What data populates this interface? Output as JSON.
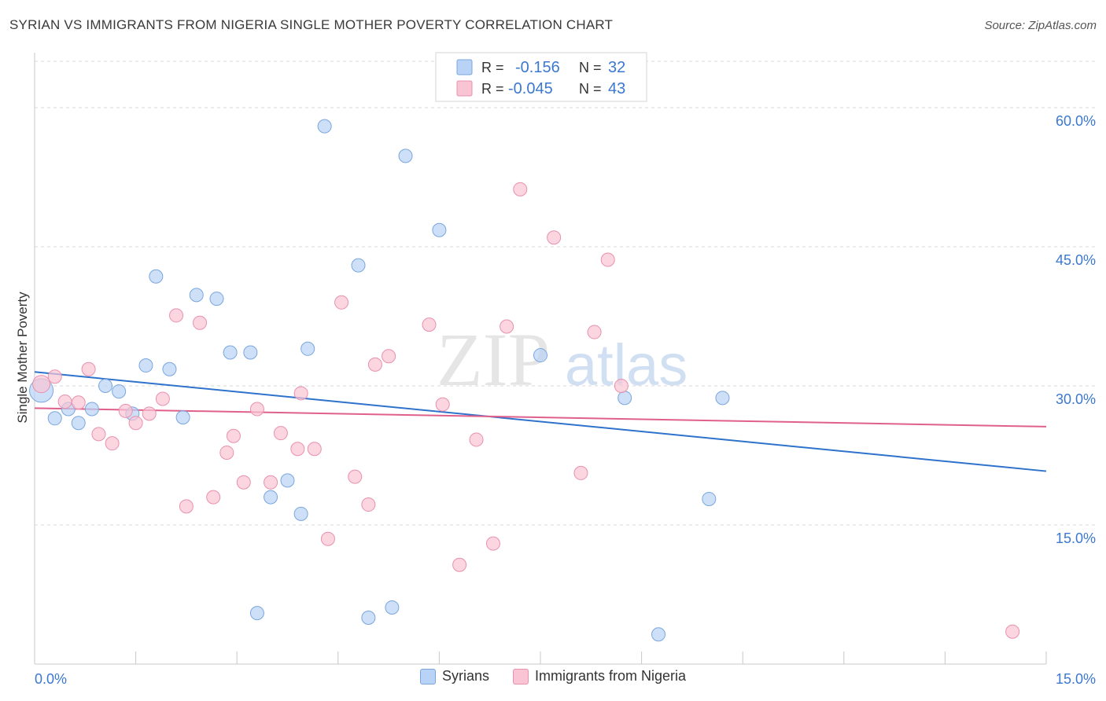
{
  "header": {
    "title": "SYRIAN VS IMMIGRANTS FROM NIGERIA SINGLE MOTHER POVERTY CORRELATION CHART",
    "source": "Source: ZipAtlas.com"
  },
  "watermark": {
    "zip": "ZIP",
    "atlas": "atlas"
  },
  "legend_top": {
    "rows": [
      {
        "r_label": "R =",
        "r_value": "-0.156",
        "n_label": "N =",
        "n_value": "32"
      },
      {
        "r_label": "R =",
        "r_value": "-0.045",
        "n_label": "N =",
        "n_value": "43"
      }
    ]
  },
  "colors": {
    "syrians_fill": "#b8d3f5",
    "syrians_stroke": "#7aa6de",
    "syrians_line": "#2e72cc",
    "nigeria_fill": "#f9c4d4",
    "nigeria_stroke": "#e990ad",
    "nigeria_line": "#e0608c",
    "axis_text": "#3b78d0",
    "grid": "#d9d9d9"
  },
  "chart_data": {
    "type": "scatter",
    "title": "SYRIAN VS IMMIGRANTS FROM NIGERIA SINGLE MOTHER POVERTY CORRELATION CHART",
    "xlabel": "",
    "ylabel": "Single Mother Poverty",
    "xlim": [
      0,
      15
    ],
    "ylim": [
      0,
      65
    ],
    "x_tick_labels": [
      "0.0%",
      "15.0%"
    ],
    "y_ticks": [
      15,
      30,
      45,
      60
    ],
    "y_tick_labels": [
      "15.0%",
      "30.0%",
      "45.0%",
      "60.0%"
    ],
    "grid": true,
    "legend_position": "bottom-center",
    "series": [
      {
        "name": "Syrians",
        "color": "#b8d3f5",
        "points": [
          [
            0.1,
            29.5
          ],
          [
            0.3,
            26.5
          ],
          [
            0.5,
            27.5
          ],
          [
            0.65,
            26
          ],
          [
            0.85,
            27.5
          ],
          [
            1.05,
            30.0
          ],
          [
            1.25,
            29.4
          ],
          [
            1.45,
            27.0
          ],
          [
            1.65,
            32.2
          ],
          [
            1.8,
            41.8
          ],
          [
            2.0,
            31.8
          ],
          [
            2.2,
            26.6
          ],
          [
            2.4,
            39.8
          ],
          [
            2.7,
            39.4
          ],
          [
            2.9,
            33.6
          ],
          [
            3.2,
            33.6
          ],
          [
            3.3,
            5.5
          ],
          [
            3.5,
            18.0
          ],
          [
            3.75,
            19.8
          ],
          [
            3.95,
            16.2
          ],
          [
            4.05,
            34.0
          ],
          [
            4.3,
            58.0
          ],
          [
            4.8,
            43.0
          ],
          [
            4.95,
            5.0
          ],
          [
            5.3,
            6.1
          ],
          [
            5.5,
            54.8
          ],
          [
            6.0,
            46.8
          ],
          [
            7.5,
            33.3
          ],
          [
            8.75,
            28.7
          ],
          [
            9.25,
            3.2
          ],
          [
            10.0,
            17.8
          ],
          [
            10.2,
            28.7
          ]
        ],
        "trend": {
          "x": [
            0,
            15
          ],
          "y": [
            31.5,
            20.8
          ]
        }
      },
      {
        "name": "Immigrants from Nigeria",
        "color": "#f9c4d4",
        "points": [
          [
            0.1,
            30.2
          ],
          [
            0.3,
            31.0
          ],
          [
            0.45,
            28.3
          ],
          [
            0.65,
            28.2
          ],
          [
            0.8,
            31.8
          ],
          [
            0.95,
            24.8
          ],
          [
            1.15,
            23.8
          ],
          [
            1.35,
            27.3
          ],
          [
            1.5,
            26.0
          ],
          [
            1.7,
            27.0
          ],
          [
            1.9,
            28.6
          ],
          [
            2.25,
            17.0
          ],
          [
            2.1,
            37.6
          ],
          [
            2.45,
            36.8
          ],
          [
            2.65,
            18.0
          ],
          [
            2.85,
            22.8
          ],
          [
            2.95,
            24.6
          ],
          [
            3.1,
            19.6
          ],
          [
            3.3,
            27.5
          ],
          [
            3.5,
            19.6
          ],
          [
            3.65,
            24.9
          ],
          [
            3.9,
            23.2
          ],
          [
            3.95,
            29.2
          ],
          [
            4.15,
            23.2
          ],
          [
            4.35,
            13.5
          ],
          [
            4.55,
            39.0
          ],
          [
            4.75,
            20.2
          ],
          [
            4.95,
            17.2
          ],
          [
            5.05,
            32.3
          ],
          [
            5.25,
            33.2
          ],
          [
            5.85,
            36.6
          ],
          [
            6.05,
            28.0
          ],
          [
            6.3,
            10.7
          ],
          [
            6.55,
            24.2
          ],
          [
            6.8,
            13.0
          ],
          [
            7.0,
            36.4
          ],
          [
            7.2,
            51.2
          ],
          [
            7.7,
            46.0
          ],
          [
            8.1,
            20.6
          ],
          [
            8.3,
            35.8
          ],
          [
            8.5,
            43.6
          ],
          [
            8.7,
            30.0
          ],
          [
            14.5,
            3.5
          ]
        ],
        "trend": {
          "x": [
            0,
            15
          ],
          "y": [
            27.6,
            25.6
          ]
        }
      }
    ]
  },
  "legend_bottom": {
    "items": [
      {
        "label": "Syrians"
      },
      {
        "label": "Immigrants from Nigeria"
      }
    ]
  }
}
